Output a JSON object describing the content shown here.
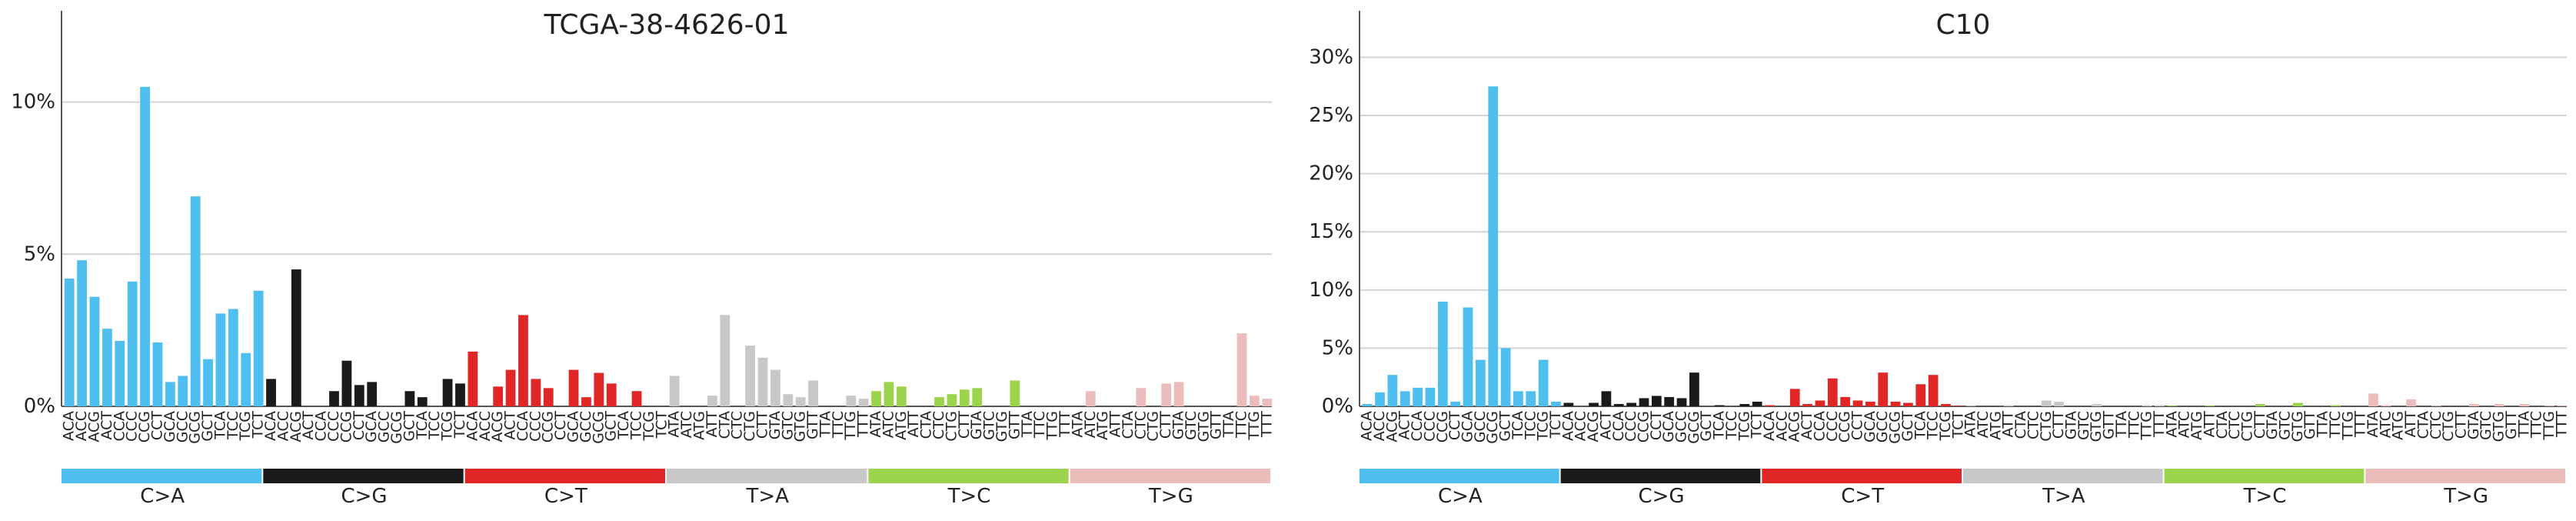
{
  "chart_data": [
    {
      "type": "bar",
      "title": "TCGA-38-4626-01",
      "ylim": [
        0,
        13
      ],
      "yticks": [
        0,
        5,
        10
      ],
      "ytick_labels": [
        "0%",
        "5%",
        "10%"
      ],
      "grid": true,
      "mutation_types": [
        "C>A",
        "C>G",
        "C>T",
        "T>A",
        "T>C",
        "T>G"
      ],
      "type_colors": [
        "#4ebfee",
        "#1a1a1a",
        "#e12726",
        "#c8c8c8",
        "#9dd44d",
        "#ebbdbd"
      ],
      "categories": [
        "ACA",
        "ACC",
        "ACG",
        "ACT",
        "CCA",
        "CCC",
        "CCG",
        "CCT",
        "GCA",
        "GCC",
        "GCG",
        "GCT",
        "TCA",
        "TCC",
        "TCG",
        "TCT",
        "ACA",
        "ACC",
        "ACG",
        "ACT",
        "CCA",
        "CCC",
        "CCG",
        "CCT",
        "GCA",
        "GCC",
        "GCG",
        "GCT",
        "TCA",
        "TCC",
        "TCG",
        "TCT",
        "ACA",
        "ACC",
        "ACG",
        "ACT",
        "CCA",
        "CCC",
        "CCG",
        "CCT",
        "GCA",
        "GCC",
        "GCG",
        "GCT",
        "TCA",
        "TCC",
        "TCG",
        "TCT",
        "ATA",
        "ATC",
        "ATG",
        "ATT",
        "CTA",
        "CTC",
        "CTG",
        "CTT",
        "GTA",
        "GTC",
        "GTG",
        "GTT",
        "TTA",
        "TTC",
        "TTG",
        "TTT",
        "ATA",
        "ATC",
        "ATG",
        "ATT",
        "CTA",
        "CTC",
        "CTG",
        "CTT",
        "GTA",
        "GTC",
        "GTG",
        "GTT",
        "TTA",
        "TTC",
        "TTG",
        "TTT",
        "ATA",
        "ATC",
        "ATG",
        "ATT",
        "CTA",
        "CTC",
        "CTG",
        "CTT",
        "GTA",
        "GTC",
        "GTG",
        "GTT",
        "TTA",
        "TTC",
        "TTG",
        "TTT"
      ],
      "values": [
        4.2,
        4.8,
        3.6,
        2.55,
        2.15,
        4.1,
        10.5,
        2.1,
        0.8,
        1.0,
        6.9,
        1.55,
        3.05,
        3.2,
        1.75,
        3.8,
        0.9,
        0,
        4.5,
        0,
        0,
        0.5,
        1.5,
        0.7,
        0.8,
        0,
        0,
        0.5,
        0.3,
        0,
        0.9,
        0.75,
        1.8,
        0,
        0.65,
        1.2,
        3.0,
        0.9,
        0.6,
        0,
        1.2,
        0.3,
        1.1,
        0.75,
        0,
        0.5,
        0,
        0,
        1.0,
        0,
        0,
        0.35,
        3.0,
        0,
        2.0,
        1.6,
        1.2,
        0.4,
        0.3,
        0.85,
        0,
        0,
        0.35,
        0.25,
        0.5,
        0.8,
        0.65,
        0,
        0,
        0.3,
        0.4,
        0.55,
        0.6,
        0,
        0,
        0.85,
        0,
        0,
        0,
        0,
        0,
        0.5,
        0,
        0,
        0,
        0.6,
        0,
        0.75,
        0.8,
        0,
        0,
        0,
        0,
        2.4,
        0.35,
        0.25
      ]
    },
    {
      "type": "bar",
      "title": "C10",
      "ylim": [
        0,
        34
      ],
      "yticks": [
        0,
        5,
        10,
        15,
        20,
        25,
        30
      ],
      "ytick_labels": [
        "0%",
        "5%",
        "10%",
        "15%",
        "20%",
        "25%",
        "30%"
      ],
      "grid": true,
      "mutation_types": [
        "C>A",
        "C>G",
        "C>T",
        "T>A",
        "T>C",
        "T>G"
      ],
      "type_colors": [
        "#4ebfee",
        "#1a1a1a",
        "#e12726",
        "#c8c8c8",
        "#9dd44d",
        "#ebbdbd"
      ],
      "categories": [
        "ACA",
        "ACC",
        "ACG",
        "ACT",
        "CCA",
        "CCC",
        "CCG",
        "CCT",
        "GCA",
        "GCC",
        "GCG",
        "GCT",
        "TCA",
        "TCC",
        "TCG",
        "TCT",
        "ACA",
        "ACC",
        "ACG",
        "ACT",
        "CCA",
        "CCC",
        "CCG",
        "CCT",
        "GCA",
        "GCC",
        "GCG",
        "GCT",
        "TCA",
        "TCC",
        "TCG",
        "TCT",
        "ACA",
        "ACC",
        "ACG",
        "ACT",
        "CCA",
        "CCC",
        "CCG",
        "CCT",
        "GCA",
        "GCC",
        "GCG",
        "GCT",
        "TCA",
        "TCC",
        "TCG",
        "TCT",
        "ATA",
        "ATC",
        "ATG",
        "ATT",
        "CTA",
        "CTC",
        "CTG",
        "CTT",
        "GTA",
        "GTC",
        "GTG",
        "GTT",
        "TTA",
        "TTC",
        "TTG",
        "TTT",
        "ATA",
        "ATC",
        "ATG",
        "ATT",
        "CTA",
        "CTC",
        "CTG",
        "CTT",
        "GTA",
        "GTC",
        "GTG",
        "GTT",
        "TTA",
        "TTC",
        "TTG",
        "TTT",
        "ATA",
        "ATC",
        "ATG",
        "ATT",
        "CTA",
        "CTC",
        "CTG",
        "CTT",
        "GTA",
        "GTC",
        "GTG",
        "GTT",
        "TTA",
        "TTC",
        "TTG",
        "TTT"
      ],
      "values": [
        0.2,
        1.2,
        2.7,
        1.3,
        1.6,
        1.6,
        9.0,
        0.4,
        8.5,
        4.0,
        27.5,
        5.0,
        1.3,
        1.3,
        4.0,
        0.4,
        0.3,
        0,
        0.3,
        1.3,
        0.2,
        0.3,
        0.7,
        0.9,
        0.8,
        0.7,
        2.9,
        0,
        0.1,
        0,
        0.2,
        0.4,
        0.1,
        0,
        1.5,
        0.2,
        0.5,
        2.4,
        0.8,
        0.5,
        0.4,
        2.9,
        0.4,
        0.3,
        1.9,
        2.7,
        0.2,
        0.05,
        0.05,
        0,
        0,
        0.1,
        0,
        0,
        0.5,
        0.4,
        0,
        0,
        0.2,
        0,
        0,
        0,
        0.1,
        0.1,
        0.05,
        0,
        0,
        0.05,
        0,
        0,
        0,
        0.2,
        0,
        0,
        0.3,
        0,
        0,
        0.1,
        0,
        0,
        1.1,
        0.1,
        0,
        0.6,
        0,
        0.05,
        0,
        0,
        0.2,
        0,
        0.2,
        0,
        0.2,
        0,
        0.05,
        0.05
      ]
    }
  ]
}
